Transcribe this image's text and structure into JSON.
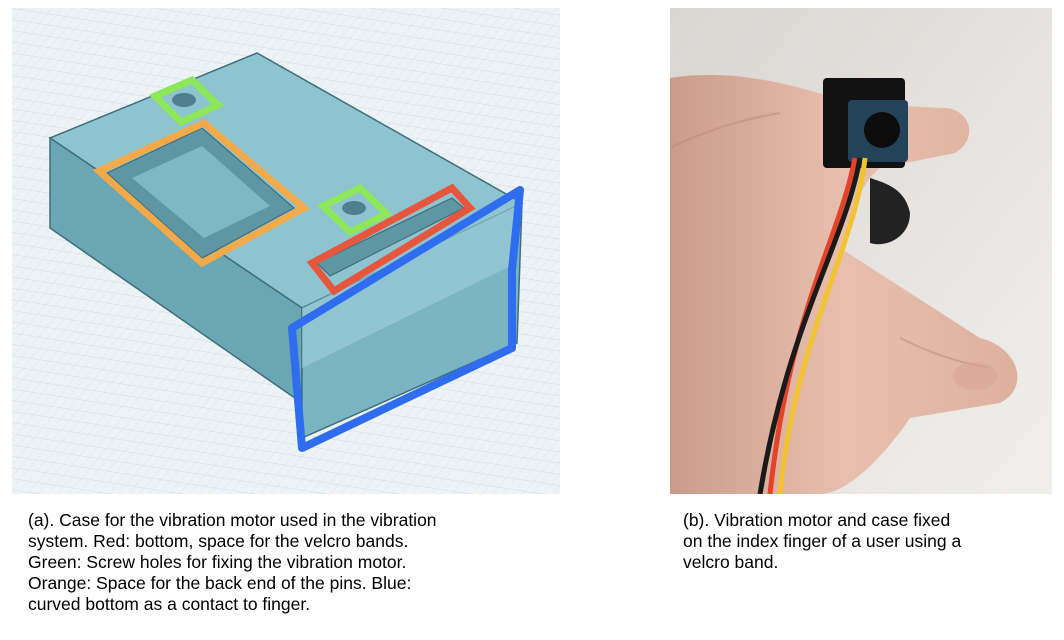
{
  "figure": {
    "panel_a": {
      "caption": "(a). Case for the vibration motor used in the vibration\nsystem. Red: bottom, space for the velcro bands.\nGreen: Screw holes for fixing the vibration motor.\nOrange: Space for the back end of the pins. Blue:\ncurved bottom as a contact to finger.",
      "colors": {
        "grid_background": "#eef3f7",
        "grid_line": "#c9d6e2",
        "case_top": "#8ec3d0",
        "case_side": "#6aa6b4",
        "case_front": "#7bb4c2",
        "red_highlight": "#e8553d",
        "green_highlight": "#8ee65a",
        "orange_highlight": "#f2a94a",
        "blue_highlight": "#2f6df0"
      }
    },
    "panel_b": {
      "caption": "(b). Vibration motor and case fixed\non the index finger of a user using a\nvelcro band.",
      "colors": {
        "background": "#e6e4e1",
        "skin": "#e3b8a6",
        "red_wire": "#e2432a",
        "yellow_wire": "#f2c230",
        "black_wire": "#1a1a1a",
        "case": "#111111"
      }
    }
  }
}
